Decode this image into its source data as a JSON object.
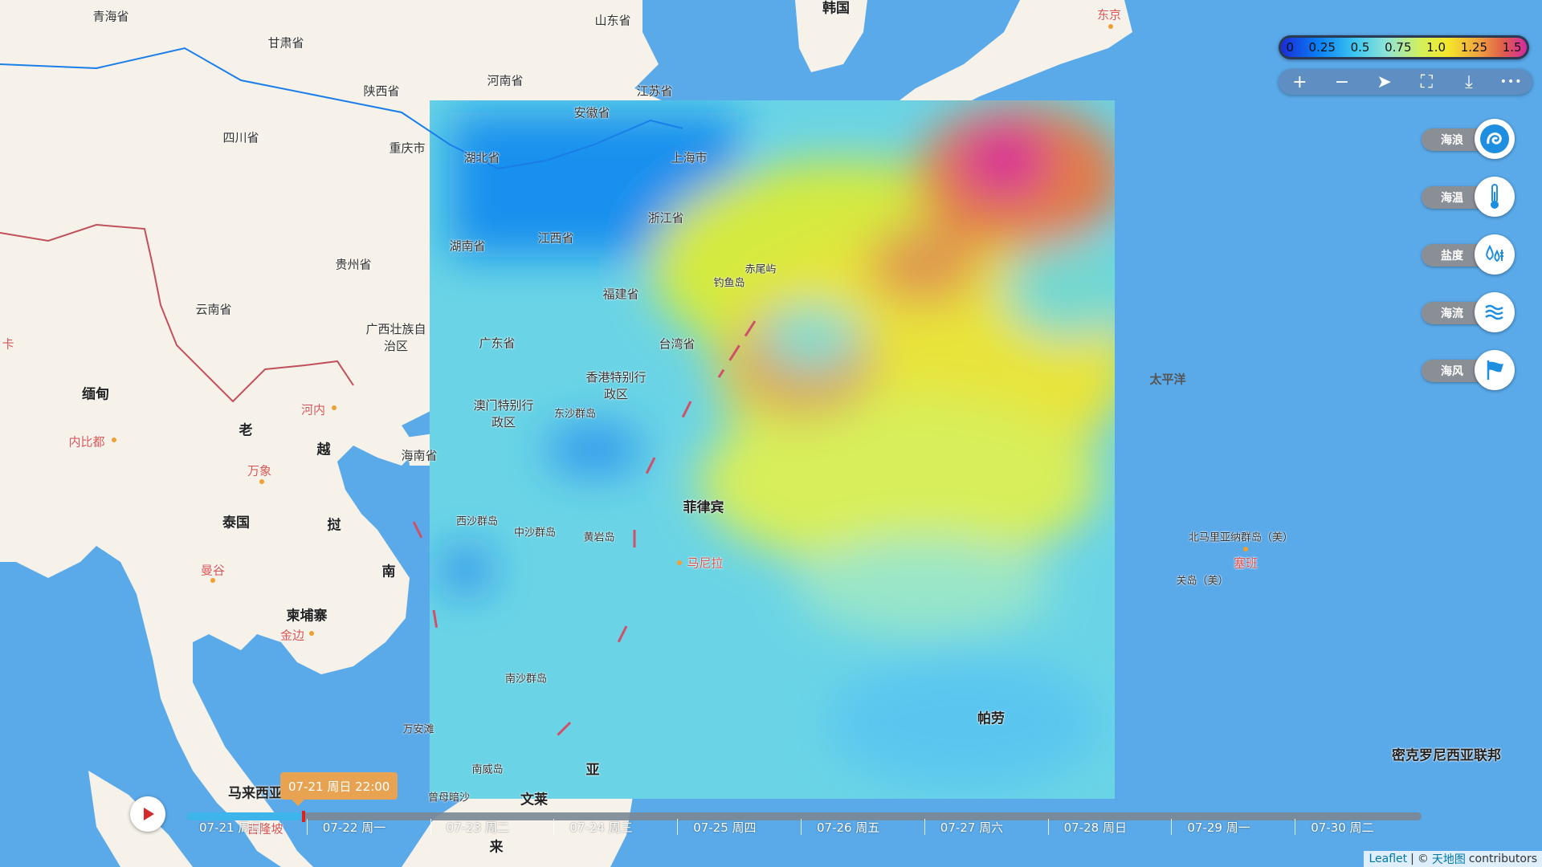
{
  "legend": {
    "ticks": [
      "0",
      "0.25",
      "0.5",
      "0.75",
      "1.0",
      "1.25",
      "1.5"
    ],
    "colors": [
      "#1a2bd8",
      "#0a7ef5",
      "#3cc6f0",
      "#8fe3d5",
      "#d4f05a",
      "#f5e62a",
      "#f0a540",
      "#e0604a",
      "#d22aa0"
    ]
  },
  "toolbar": {
    "zoom_in": "+",
    "zoom_out": "−",
    "locate": "➤",
    "fullscreen": "⛶",
    "download": "⤓",
    "more": "•••"
  },
  "layers": [
    {
      "label": "海浪",
      "icon": "wave-swirl-icon",
      "active": true
    },
    {
      "label": "海温",
      "icon": "thermometer-icon",
      "active": false
    },
    {
      "label": "盐度",
      "icon": "salinity-drops-icon",
      "active": false
    },
    {
      "label": "海流",
      "icon": "current-waves-icon",
      "active": false
    },
    {
      "label": "海风",
      "icon": "wind-flag-icon",
      "active": false
    }
  ],
  "timeline": {
    "tooltip": "07-21 周日 22:00",
    "progress": 0.095,
    "days": [
      "07-21 周日",
      "07-22 周一",
      "07-23 周二",
      "07-24 周三",
      "07-25 周四",
      "07-26 周五",
      "07-27 周六",
      "07-28 周日",
      "07-29 周一",
      "07-30 周二"
    ]
  },
  "map_labels": {
    "provinces": [
      "青海省",
      "甘肃省",
      "山东省",
      "河南省",
      "江苏省",
      "陕西省",
      "安徽省",
      "四川省",
      "重庆市",
      "湖北省",
      "上海市",
      "浙江省",
      "湖南省",
      "江西省",
      "贵州省",
      "福建省",
      "云南省",
      "广西壮族自治区",
      "广东省",
      "台湾省",
      "香港特别行政区",
      "澳门特别行政区",
      "海南省"
    ],
    "countries": [
      "韩国",
      "缅甸",
      "老",
      "越",
      "挝",
      "泰国",
      "柬埔寨",
      "南",
      "菲律宾",
      "马来西亚",
      "文莱",
      "亚",
      "来",
      "帕劳",
      "密克罗尼西亚联邦"
    ],
    "cities_red": [
      "东京",
      "河内",
      "内比都",
      "万象",
      "曼谷",
      "金边",
      "马尼拉",
      "塞班",
      "吉隆坡"
    ],
    "islands": [
      "钓鱼岛",
      "赤尾屿",
      "东沙群岛",
      "西沙群岛",
      "中沙群岛",
      "黄岩岛",
      "南沙群岛",
      "万安滩",
      "南威岛",
      "曾母暗沙",
      "北马里亚纳群岛（美）",
      "关岛（美）"
    ],
    "sea": [
      "太平洋"
    ],
    "edge": [
      "卡"
    ]
  },
  "attribution": {
    "leaflet": "Leaflet",
    "sep": "|",
    "copyright": "©",
    "tianditu": "天地图",
    "contributors": "contributors"
  }
}
